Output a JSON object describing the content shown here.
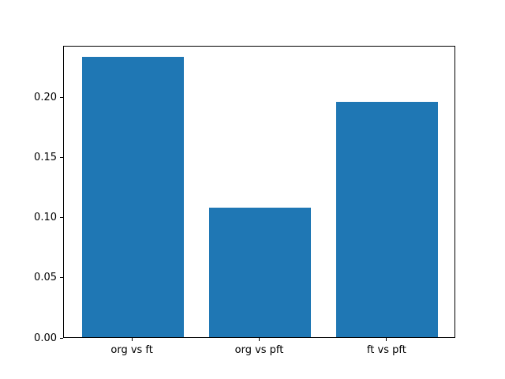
{
  "figure": {
    "background_color": "#ffffff",
    "axis_color": "#000000",
    "text_color": "#000000",
    "bar_color": "#1f77b4"
  },
  "chart_data": {
    "type": "bar",
    "title": "",
    "xlabel": "",
    "ylabel": "",
    "categories": [
      "org vs ft",
      "org vs pft",
      "ft vs pft"
    ],
    "values": [
      0.233,
      0.108,
      0.196
    ],
    "bar_centers": [
      0,
      1,
      2
    ],
    "bar_width": 0.8,
    "xlim": [
      -0.54,
      2.54
    ],
    "ylim": [
      0,
      0.243
    ],
    "yticks": [
      0.0,
      0.05,
      0.1,
      0.15,
      0.2
    ],
    "ytick_labels": [
      "0.00",
      "0.05",
      "0.10",
      "0.15",
      "0.20"
    ],
    "grid": false,
    "legend": null
  }
}
